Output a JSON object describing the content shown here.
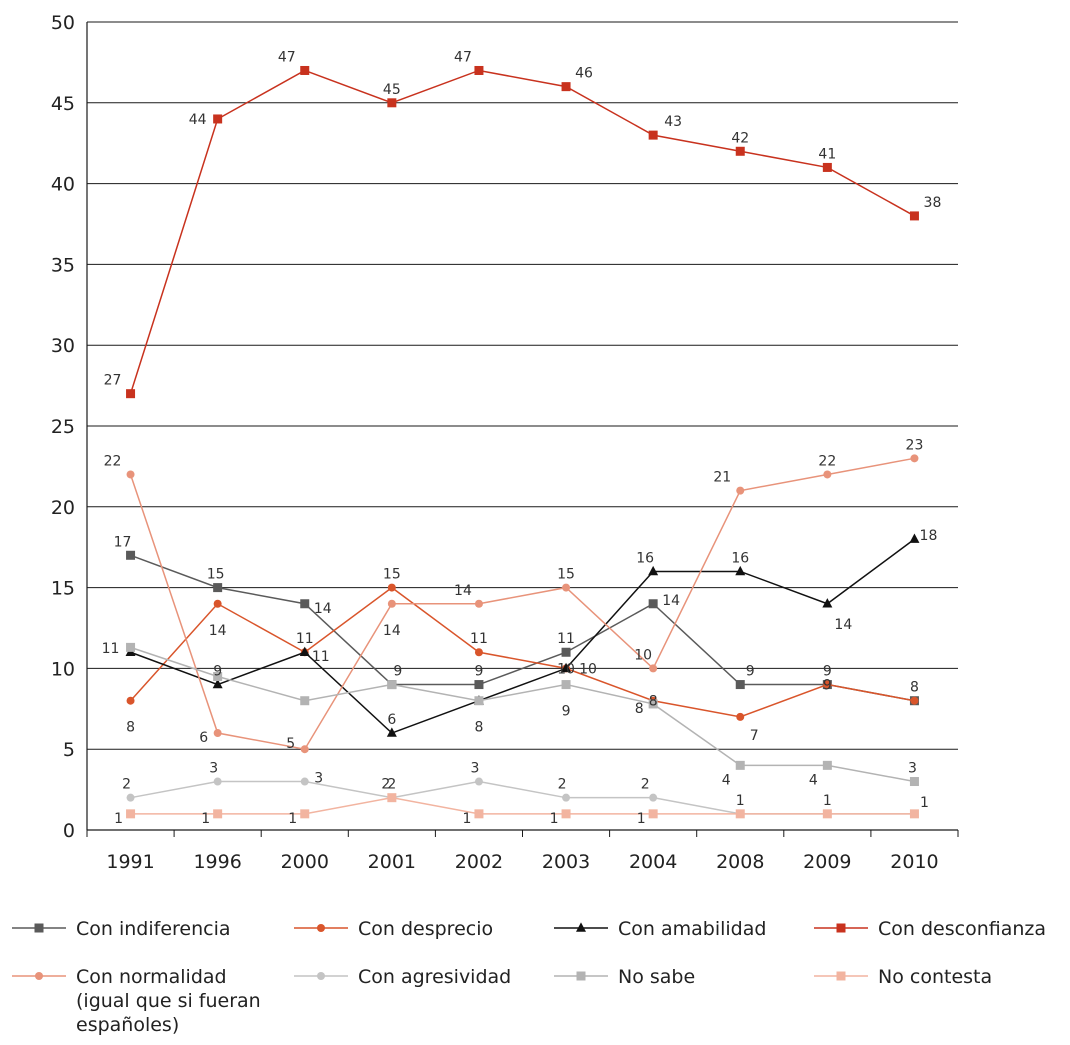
{
  "chart_data": {
    "type": "line",
    "categories": [
      "1991",
      "1996",
      "2000",
      "2001",
      "2002",
      "2003",
      "2004",
      "2008",
      "2009",
      "2010"
    ],
    "ylim": [
      0,
      50
    ],
    "yticks": [
      "0",
      "5",
      "10",
      "15",
      "20",
      "25",
      "30",
      "35",
      "40",
      "45",
      "50"
    ],
    "grid": true,
    "legend_position": "bottom",
    "series": [
      {
        "name": "Con indiferencia",
        "color": "#5a5a5a",
        "marker": "square",
        "values": [
          17,
          15,
          14,
          9,
          9,
          11,
          14,
          9,
          9,
          8
        ],
        "labels": [
          "17",
          "15",
          "14",
          "9",
          "9",
          "11",
          "14",
          "9",
          "9",
          "8"
        ]
      },
      {
        "name": "Con desprecio",
        "color": "#d9552b",
        "marker": "circle",
        "values": [
          8,
          14,
          11,
          15,
          11,
          10,
          8,
          7,
          9,
          8
        ],
        "labels": [
          "8",
          "14",
          "11",
          "15",
          "11",
          "10",
          "8",
          "7",
          "9",
          ""
        ]
      },
      {
        "name": "Con amabilidad",
        "color": "#111111",
        "marker": "triangle",
        "values": [
          11,
          9,
          11,
          6,
          8,
          10,
          16,
          16,
          14,
          18
        ],
        "labels": [
          "11",
          "9",
          "11",
          "6",
          "8",
          "10",
          "16",
          "16",
          "14",
          "18"
        ]
      },
      {
        "name": "Con desconfianza",
        "color": "#c8321e",
        "marker": "square",
        "values": [
          27,
          44,
          47,
          45,
          47,
          46,
          43,
          42,
          41,
          38
        ],
        "labels": [
          "27",
          "44",
          "47",
          "45",
          "47",
          "46",
          "43",
          "42",
          "41",
          "38"
        ]
      },
      {
        "name": "Con normalidad\n(igual que si fueran\nespañoles)",
        "color": "#e8937a",
        "marker": "circle",
        "values": [
          22,
          6,
          5,
          14,
          14,
          15,
          10,
          21,
          22,
          23
        ],
        "labels": [
          "22",
          "6",
          "5",
          "14",
          "14",
          "15",
          "10",
          "21",
          "22",
          "23"
        ]
      },
      {
        "name": "Con agresividad",
        "color": "#c4c4c4",
        "marker": "circle",
        "values": [
          2,
          3,
          3,
          2,
          3,
          2,
          2,
          1,
          1,
          1
        ],
        "labels": [
          "2",
          "3",
          "3",
          "2",
          "3",
          "2",
          "2",
          "",
          "",
          ""
        ]
      },
      {
        "name": "No sabe",
        "color": "#b3b3b3",
        "marker": "square",
        "values": [
          11.3,
          9.5,
          8,
          9,
          8,
          9,
          7.8,
          4,
          4,
          3
        ],
        "labels": [
          "",
          "",
          "",
          "",
          "",
          "9",
          "8",
          "4",
          "4",
          "3"
        ]
      },
      {
        "name": "No contesta",
        "color": "#f2b4a0",
        "marker": "square",
        "values": [
          1,
          1,
          1,
          2,
          1,
          1,
          1,
          1,
          1,
          1
        ],
        "labels": [
          "1",
          "1",
          "1",
          "2",
          "1",
          "1",
          "1",
          "1",
          "1",
          "1"
        ]
      }
    ]
  }
}
